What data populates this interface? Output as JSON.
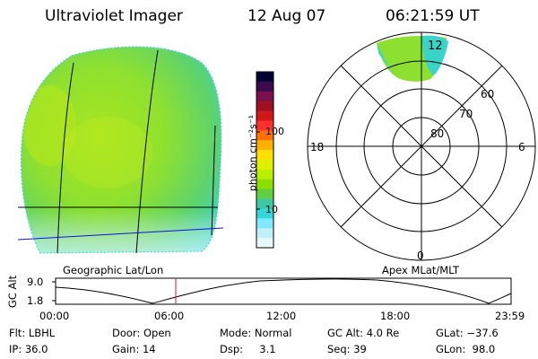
{
  "header": {
    "instrument": "Ultraviolet Imager",
    "date": "12 Aug 07",
    "time": "06:21:59  UT"
  },
  "colorbar": {
    "label": "photon cm⁻²s⁻¹",
    "ticks": [
      "100",
      "10"
    ],
    "colors": [
      "#000033",
      "#3b0a4f",
      "#7a1050",
      "#a01020",
      "#d01818",
      "#ff3030",
      "#ff7000",
      "#ffb000",
      "#ffe000",
      "#e0f000",
      "#b8f000",
      "#8be000",
      "#5ed040",
      "#3cc8a0",
      "#30d8d8",
      "#80e8ff",
      "#c0f0f8",
      "#e8f8f8"
    ]
  },
  "left_panel": {
    "caption": "Geographic Lat/Lon"
  },
  "polar_panel": {
    "caption": "Apex MLat/MLT",
    "mlt_labels": {
      "top": "12",
      "left": "18",
      "right": "6",
      "bottom": "0"
    },
    "mlat_labels": [
      "60",
      "70",
      "80"
    ]
  },
  "gc_alt_plot": {
    "ylabel": "GC Alt",
    "yticks": [
      "9.0",
      "1.8"
    ],
    "xticks": [
      "00:00",
      "06:00",
      "12:00",
      "18:00",
      "23:59"
    ],
    "current_time_marker": "06:21:59"
  },
  "info": {
    "row1": {
      "flt": "Flt: LBHL",
      "door": "Door: Open",
      "mode": "Mode: Normal",
      "gcalt": "GC Alt: 4.0 Re",
      "glat": "GLat: −37.6"
    },
    "row2": {
      "ip": "IP: 36.0",
      "gain": "Gain: 14",
      "dsp": "Dsp:     3.1",
      "seq": "Seq: 39",
      "glon": "GLon:  98.0"
    }
  }
}
